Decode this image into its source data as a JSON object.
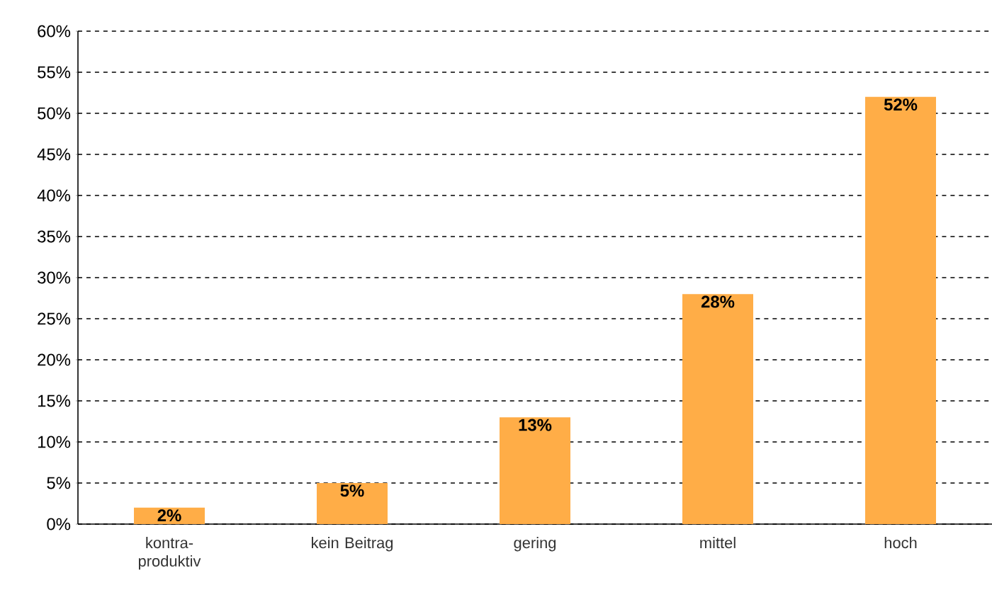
{
  "chart_data": {
    "type": "bar",
    "categories": [
      "kontra-produktiv",
      "kein Beitrag",
      "gering",
      "mittel",
      "hoch"
    ],
    "values": [
      2,
      5,
      13,
      28,
      52
    ],
    "value_labels": [
      "2%",
      "5%",
      "13%",
      "28%",
      "52%"
    ],
    "color": "#ffad47",
    "ylim": [
      0,
      60
    ],
    "yticks": [
      {
        "value": 0,
        "label": "0%"
      },
      {
        "value": 5,
        "label": "5%"
      },
      {
        "value": 10,
        "label": "10%"
      },
      {
        "value": 15,
        "label": "15%"
      },
      {
        "value": 20,
        "label": "20%"
      },
      {
        "value": 25,
        "label": "25%"
      },
      {
        "value": 30,
        "label": "30%"
      },
      {
        "value": 35,
        "label": "35%"
      },
      {
        "value": 40,
        "label": "40%"
      },
      {
        "value": 45,
        "label": "45%"
      },
      {
        "value": 50,
        "label": "50%"
      },
      {
        "value": 55,
        "label": "55%"
      },
      {
        "value": 60,
        "label": "60%"
      }
    ],
    "grid": "y"
  }
}
